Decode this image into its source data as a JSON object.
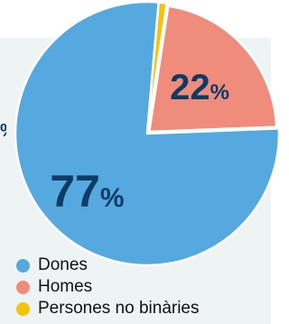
{
  "chart_data": {
    "type": "pie",
    "categories": [
      "Dones",
      "Homes",
      "Persones no binàries"
    ],
    "values": [
      77,
      22,
      1
    ],
    "colors": [
      "#56a9de",
      "#ef8c7c",
      "#f2c40f"
    ],
    "data_labels": [
      "77%",
      "22%",
      ""
    ],
    "legend_position": "bottom-left"
  },
  "edge_label": "%"
}
